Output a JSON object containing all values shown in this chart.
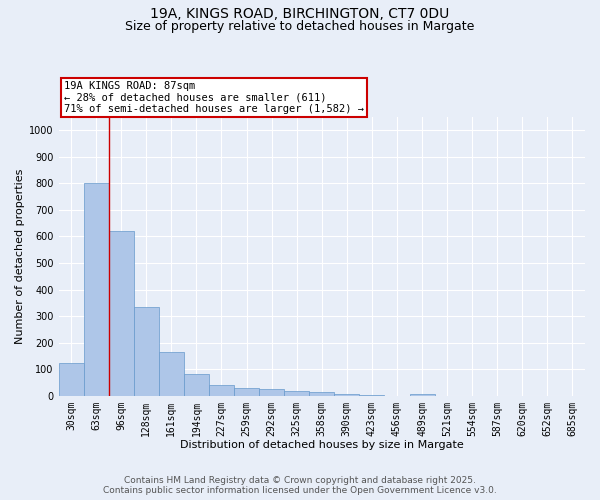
{
  "title_line1": "19A, KINGS ROAD, BIRCHINGTON, CT7 0DU",
  "title_line2": "Size of property relative to detached houses in Margate",
  "xlabel": "Distribution of detached houses by size in Margate",
  "ylabel": "Number of detached properties",
  "categories": [
    "30sqm",
    "63sqm",
    "96sqm",
    "128sqm",
    "161sqm",
    "194sqm",
    "227sqm",
    "259sqm",
    "292sqm",
    "325sqm",
    "358sqm",
    "390sqm",
    "423sqm",
    "456sqm",
    "489sqm",
    "521sqm",
    "554sqm",
    "587sqm",
    "620sqm",
    "652sqm",
    "685sqm"
  ],
  "values": [
    125,
    800,
    620,
    335,
    165,
    80,
    40,
    28,
    25,
    18,
    13,
    5,
    2,
    0,
    8,
    0,
    0,
    0,
    0,
    0,
    0
  ],
  "bar_color": "#aec6e8",
  "bar_edge_color": "#6699cc",
  "ylim": [
    0,
    1050
  ],
  "yticks": [
    0,
    100,
    200,
    300,
    400,
    500,
    600,
    700,
    800,
    900,
    1000
  ],
  "vline_x": 1.5,
  "vline_color": "#cc0000",
  "annotation_text_line1": "19A KINGS ROAD: 87sqm",
  "annotation_text_line2": "← 28% of detached houses are smaller (611)",
  "annotation_text_line3": "71% of semi-detached houses are larger (1,582) →",
  "annotation_box_color": "#cc0000",
  "footer_line1": "Contains HM Land Registry data © Crown copyright and database right 2025.",
  "footer_line2": "Contains public sector information licensed under the Open Government Licence v3.0.",
  "background_color": "#e8eef8",
  "grid_color": "#ffffff",
  "title_fontsize": 10,
  "subtitle_fontsize": 9,
  "axis_label_fontsize": 8,
  "tick_fontsize": 7,
  "annotation_fontsize": 7.5,
  "footer_fontsize": 6.5
}
